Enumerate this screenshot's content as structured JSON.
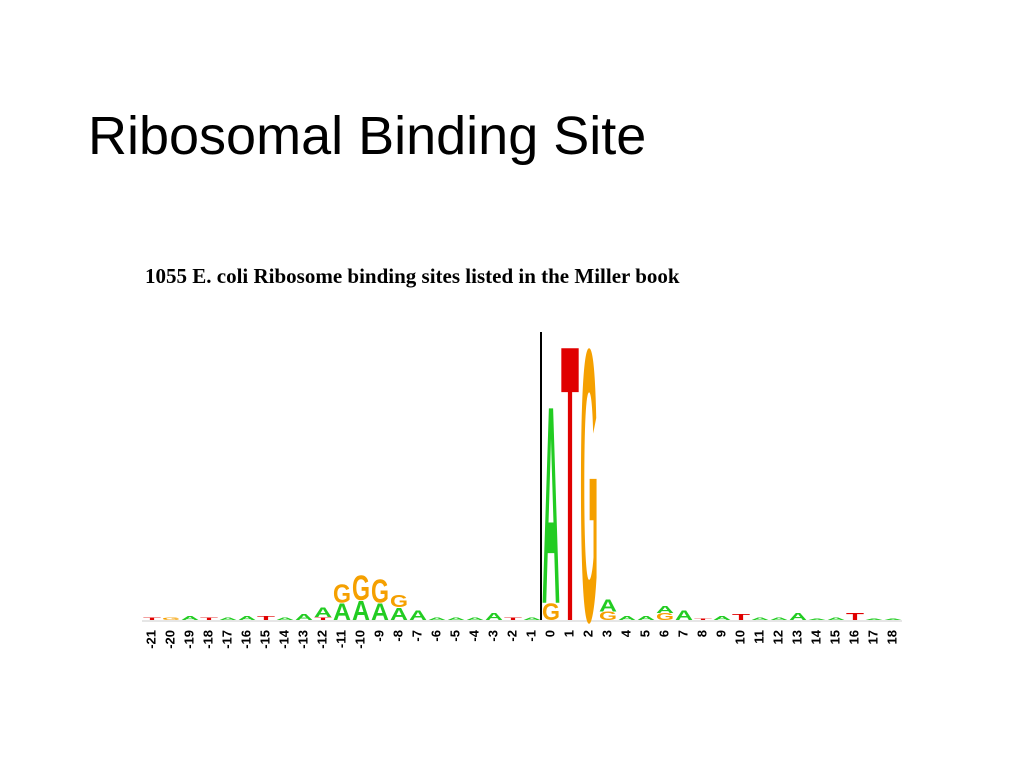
{
  "slide": {
    "title": "Ribosomal Binding Site"
  },
  "chart_data": {
    "type": "logo",
    "title": "1055 E. coli Ribosome binding sites listed in the Miller book",
    "categories": [
      "-21",
      "-20",
      "-19",
      "-18",
      "-17",
      "-16",
      "-15",
      "-14",
      "-13",
      "-12",
      "-11",
      "-10",
      "-9",
      "-8",
      "-7",
      "-6",
      "-5",
      "-4",
      "-3",
      "-2",
      "-1",
      "0",
      "1",
      "2",
      "3",
      "4",
      "5",
      "6",
      "7",
      "8",
      "9",
      "10",
      "11",
      "12",
      "13",
      "14",
      "15",
      "16",
      "17",
      "18"
    ],
    "colors": {
      "A": "#22cc22",
      "G": "#f5a000",
      "T": "#e00000",
      "C": "#3399ff"
    },
    "stacks": [
      [
        {
          "letter": "T",
          "bits": 0.02
        }
      ],
      [
        {
          "letter": "G",
          "bits": 0.02
        }
      ],
      [
        {
          "letter": "A",
          "bits": 0.03
        }
      ],
      [
        {
          "letter": "T",
          "bits": 0.02
        }
      ],
      [
        {
          "letter": "A",
          "bits": 0.02
        }
      ],
      [
        {
          "letter": "A",
          "bits": 0.03
        }
      ],
      [
        {
          "letter": "T",
          "bits": 0.03
        }
      ],
      [
        {
          "letter": "A",
          "bits": 0.02
        }
      ],
      [
        {
          "letter": "A",
          "bits": 0.04
        }
      ],
      [
        {
          "letter": "T",
          "bits": 0.02
        },
        {
          "letter": "A",
          "bits": 0.07
        }
      ],
      [
        {
          "letter": "A",
          "bits": 0.12
        },
        {
          "letter": "G",
          "bits": 0.13
        }
      ],
      [
        {
          "letter": "A",
          "bits": 0.14
        },
        {
          "letter": "G",
          "bits": 0.18
        }
      ],
      [
        {
          "letter": "A",
          "bits": 0.12
        },
        {
          "letter": "G",
          "bits": 0.17
        }
      ],
      [
        {
          "letter": "A",
          "bits": 0.09
        },
        {
          "letter": "G",
          "bits": 0.09
        }
      ],
      [
        {
          "letter": "A",
          "bits": 0.07
        }
      ],
      [
        {
          "letter": "A",
          "bits": 0.02
        }
      ],
      [
        {
          "letter": "A",
          "bits": 0.02
        }
      ],
      [
        {
          "letter": "A",
          "bits": 0.02
        }
      ],
      [
        {
          "letter": "A",
          "bits": 0.05
        }
      ],
      [
        {
          "letter": "T",
          "bits": 0.02
        }
      ],
      [
        {
          "letter": "A",
          "bits": 0.02
        }
      ],
      [
        {
          "letter": "G",
          "bits": 0.12
        },
        {
          "letter": "A",
          "bits": 1.43
        }
      ],
      [
        {
          "letter": "T",
          "bits": 2.0
        }
      ],
      [
        {
          "letter": "G",
          "bits": 1.97
        }
      ],
      [
        {
          "letter": "G",
          "bits": 0.06
        },
        {
          "letter": "A",
          "bits": 0.09
        }
      ],
      [
        {
          "letter": "A",
          "bits": 0.03
        }
      ],
      [
        {
          "letter": "A",
          "bits": 0.03
        }
      ],
      [
        {
          "letter": "G",
          "bits": 0.05
        },
        {
          "letter": "A",
          "bits": 0.05
        }
      ],
      [
        {
          "letter": "A",
          "bits": 0.07
        }
      ],
      [
        {
          "letter": "T",
          "bits": 0.01
        }
      ],
      [
        {
          "letter": "A",
          "bits": 0.03
        }
      ],
      [
        {
          "letter": "T",
          "bits": 0.04
        }
      ],
      [
        {
          "letter": "A",
          "bits": 0.02
        }
      ],
      [
        {
          "letter": "A",
          "bits": 0.02
        }
      ],
      [
        {
          "letter": "A",
          "bits": 0.05
        }
      ],
      [
        {
          "letter": "A",
          "bits": 0.01
        }
      ],
      [
        {
          "letter": "A",
          "bits": 0.02
        }
      ],
      [
        {
          "letter": "T",
          "bits": 0.05
        }
      ],
      [
        {
          "letter": "A",
          "bits": 0.01
        }
      ],
      [
        {
          "letter": "A",
          "bits": 0.01
        }
      ]
    ]
  }
}
